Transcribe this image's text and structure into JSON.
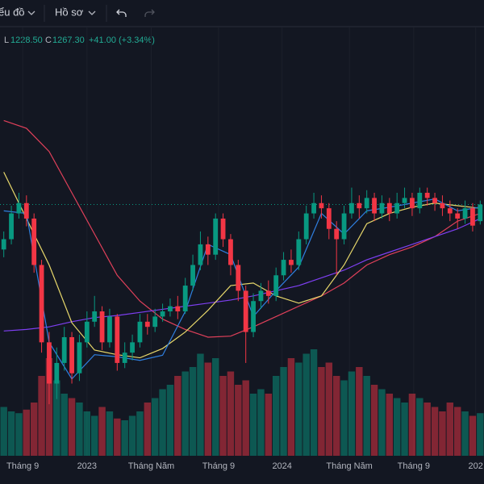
{
  "toolbar": {
    "chart_menu": "ểu đồ",
    "profile_menu": "Hồ sơ"
  },
  "chart_data": {
    "type": "candlestick",
    "legend": {
      "low_key": "L",
      "low": "1228.50",
      "close_key": "C",
      "close": "1267.30",
      "change": "+41.00 (+3.34%)"
    },
    "open": [
      1180,
      1200,
      1250,
      1270,
      1240,
      1150,
      1000,
      920,
      960,
      1010,
      940,
      1000,
      1040,
      1060,
      1000,
      1050,
      960,
      980,
      1000,
      1040,
      1030,
      1050,
      1060,
      1070,
      1060,
      1110,
      1150,
      1190,
      1170,
      1240,
      1200,
      1150,
      1100,
      1020,
      1080,
      1100,
      1090,
      1130,
      1160,
      1150,
      1200,
      1250,
      1270,
      1260,
      1220,
      1200,
      1250,
      1270,
      1260,
      1280,
      1250,
      1270,
      1250,
      1270,
      1280,
      1260,
      1290,
      1280,
      1270,
      1260,
      1250,
      1240,
      1260,
      1235
    ],
    "high": [
      1215,
      1265,
      1290,
      1285,
      1250,
      1160,
      1020,
      990,
      1030,
      1020,
      1015,
      1060,
      1090,
      1070,
      1065,
      1055,
      1000,
      1015,
      1055,
      1055,
      1065,
      1075,
      1085,
      1090,
      1125,
      1170,
      1215,
      1205,
      1250,
      1250,
      1210,
      1160,
      1110,
      1095,
      1115,
      1120,
      1145,
      1175,
      1180,
      1215,
      1265,
      1290,
      1285,
      1270,
      1235,
      1265,
      1300,
      1285,
      1295,
      1290,
      1285,
      1280,
      1290,
      1300,
      1290,
      1300,
      1300,
      1290,
      1285,
      1275,
      1260,
      1275,
      1270,
      1275
    ],
    "low": [
      1165,
      1190,
      1240,
      1225,
      1135,
      980,
      880,
      890,
      945,
      920,
      925,
      990,
      1030,
      985,
      990,
      945,
      950,
      965,
      990,
      1015,
      1020,
      1040,
      1050,
      1045,
      1055,
      1100,
      1140,
      1150,
      1160,
      1185,
      1130,
      1080,
      960,
      1010,
      1065,
      1075,
      1080,
      1120,
      1135,
      1140,
      1190,
      1240,
      1240,
      1200,
      1130,
      1190,
      1240,
      1240,
      1250,
      1235,
      1240,
      1235,
      1240,
      1260,
      1245,
      1250,
      1265,
      1255,
      1245,
      1235,
      1220,
      1230,
      1215,
      1228.5
    ],
    "close": [
      1200,
      1250,
      1270,
      1240,
      1150,
      1000,
      920,
      960,
      1010,
      940,
      1000,
      1040,
      1060,
      1000,
      1050,
      960,
      980,
      1000,
      1040,
      1030,
      1050,
      1060,
      1070,
      1060,
      1110,
      1150,
      1190,
      1170,
      1240,
      1200,
      1150,
      1100,
      1020,
      1080,
      1100,
      1090,
      1130,
      1160,
      1150,
      1200,
      1250,
      1270,
      1260,
      1220,
      1200,
      1250,
      1270,
      1260,
      1280,
      1250,
      1270,
      1250,
      1270,
      1280,
      1260,
      1290,
      1280,
      1270,
      1260,
      1250,
      1240,
      1260,
      1226.3,
      1267.3
    ],
    "volume": [
      550,
      500,
      480,
      520,
      600,
      900,
      1100,
      850,
      700,
      650,
      600,
      500,
      450,
      550,
      500,
      420,
      400,
      450,
      500,
      600,
      650,
      750,
      800,
      900,
      950,
      1000,
      1150,
      1050,
      1100,
      900,
      950,
      800,
      850,
      700,
      750,
      700,
      900,
      1000,
      1100,
      1050,
      1150,
      1200,
      1000,
      1050,
      900,
      850,
      950,
      1000,
      900,
      800,
      750,
      700,
      650,
      600,
      700,
      650,
      600,
      550,
      500,
      600,
      550,
      500,
      450,
      480
    ],
    "xlim": [
      -0.5,
      63.5
    ],
    "ylim": [
      780,
      1570
    ],
    "vlim": [
      0,
      1500
    ],
    "xticks": [
      {
        "value": 2.5,
        "label": "Tháng 9"
      },
      {
        "value": 11,
        "label": "2023"
      },
      {
        "value": 19.5,
        "label": "Tháng Năm"
      },
      {
        "value": 28.4,
        "label": "Tháng 9"
      },
      {
        "value": 36.8,
        "label": "2024"
      },
      {
        "value": 45.7,
        "label": "Tháng Năm"
      },
      {
        "value": 54.2,
        "label": "Tháng 9"
      },
      {
        "value": 62.4,
        "label": "202"
      }
    ],
    "up_color": "#089981",
    "down_color": "#f23645",
    "price_line": true,
    "moving_averages": [
      {
        "color": "#e0405a",
        "x": [
          0,
          3,
          6,
          9,
          12,
          15,
          18,
          21,
          24,
          27,
          30,
          33,
          36,
          39,
          42,
          45,
          48,
          51,
          54,
          57,
          60,
          63
        ],
        "values": [
          1430,
          1415,
          1370,
          1290,
          1210,
          1130,
          1080,
          1045,
          1025,
          1010,
          1012,
          1030,
          1050,
          1070,
          1090,
          1115,
          1150,
          1170,
          1185,
          1205,
          1235,
          1250
        ]
      },
      {
        "color": "#7e3ff2",
        "x": [
          0,
          3,
          6,
          9,
          12,
          15,
          18,
          21,
          24,
          27,
          30,
          33,
          36,
          39,
          42,
          45,
          48,
          51,
          54,
          57,
          60,
          63
        ],
        "values": [
          1022,
          1025,
          1030,
          1040,
          1048,
          1052,
          1058,
          1064,
          1070,
          1076,
          1082,
          1090,
          1100,
          1110,
          1125,
          1140,
          1160,
          1175,
          1190,
          1205,
          1220,
          1240
        ]
      },
      {
        "color": "#e8d86b",
        "x": [
          0,
          3,
          6,
          9,
          12,
          15,
          18,
          21,
          24,
          27,
          30,
          33,
          36,
          39,
          42,
          45,
          48,
          51,
          54,
          57,
          60,
          63
        ],
        "values": [
          1330,
          1240,
          1150,
          1038,
          985,
          976,
          970,
          988,
          1020,
          1062,
          1110,
          1115,
          1090,
          1076,
          1090,
          1150,
          1230,
          1250,
          1262,
          1270,
          1265,
          1260
        ]
      },
      {
        "color": "#2f7fe0",
        "x": [
          0,
          3,
          6,
          9,
          12,
          15,
          18,
          21,
          24,
          27,
          30,
          33,
          36,
          39,
          42,
          45,
          48,
          51,
          54,
          57,
          60,
          63
        ],
        "values": [
          1255,
          1250,
          1000,
          929,
          976,
          972,
          965,
          975,
          1060,
          1190,
          1170,
          1050,
          1100,
          1146,
          1250,
          1210,
          1255,
          1262,
          1270,
          1278,
          1255,
          1262
        ]
      }
    ]
  }
}
